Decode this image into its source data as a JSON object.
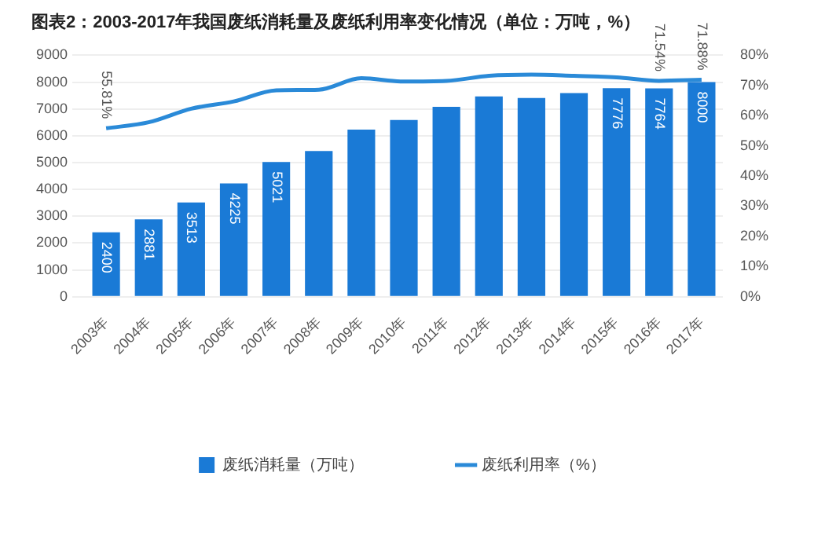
{
  "chart_data": {
    "type": "bar",
    "title": "图表2：2003-2017年我国废纸消耗量及废纸利用率变化情况（单位：万吨，%）",
    "categories": [
      "2003年",
      "2004年",
      "2005年",
      "2006年",
      "2007年",
      "2008年",
      "2009年",
      "2010年",
      "2011年",
      "2012年",
      "2013年",
      "2014年",
      "2015年",
      "2016年",
      "2017年"
    ],
    "series": [
      {
        "name": "废纸消耗量（万吨）",
        "color": "#1a7ad6",
        "values": [
          2400,
          2881,
          3513,
          4225,
          5021,
          5430,
          6230,
          6590,
          7080,
          7470,
          7410,
          7590,
          7776,
          7764,
          8000
        ],
        "value_labels": [
          "2400",
          "2881",
          "3513",
          "4225",
          "5021",
          null,
          null,
          null,
          null,
          null,
          null,
          null,
          "7776",
          "7764",
          "8000"
        ]
      },
      {
        "name": "废纸利用率（%）",
        "type": "line",
        "axis": "y2",
        "color": "#2a8ad8",
        "marker": "none",
        "values": [
          55.81,
          57.8,
          62.3,
          64.7,
          68.4,
          68.6,
          72.4,
          71.3,
          71.5,
          73.2,
          73.6,
          73.2,
          72.7,
          71.54,
          71.88
        ],
        "value_labels": [
          "55.81%",
          null,
          null,
          null,
          null,
          null,
          null,
          null,
          null,
          null,
          null,
          null,
          null,
          "71.54%",
          "71.88%"
        ]
      }
    ],
    "ylim": [
      0,
      9000
    ],
    "yticks": [
      0,
      1000,
      2000,
      3000,
      4000,
      5000,
      6000,
      7000,
      8000,
      9000
    ],
    "y2lim": [
      0,
      80
    ],
    "y2ticks": [
      {
        "value": 0,
        "label": "0%"
      },
      {
        "value": 10,
        "label": "10%"
      },
      {
        "value": 20,
        "label": "20%"
      },
      {
        "value": 30,
        "label": "30%"
      },
      {
        "value": 40,
        "label": "40%"
      },
      {
        "value": 50,
        "label": "50%"
      },
      {
        "value": 60,
        "label": "60%"
      },
      {
        "value": 70,
        "label": "70%"
      },
      {
        "value": 80,
        "label": "80%"
      }
    ],
    "grid": "y",
    "legend": "bottom"
  }
}
